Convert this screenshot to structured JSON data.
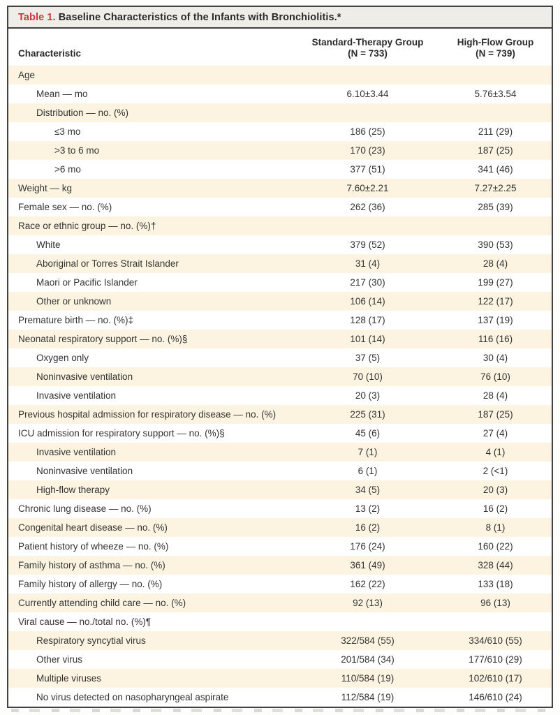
{
  "colors": {
    "accent_red": "#c23b3b",
    "stripe_cream": "#fcf4e1",
    "titlebar_bg": "#efede7",
    "border": "#414143"
  },
  "table": {
    "title_label": "Table 1.",
    "title_text": "Baseline Characteristics of the Infants with Bronchiolitis.*",
    "columns": {
      "characteristic": "Characteristic",
      "std_line1": "Standard-Therapy Group",
      "std_line2": "(N = 733)",
      "hf_line1": "High-Flow Group",
      "hf_line2": "(N = 739)"
    },
    "rows": [
      {
        "label": "Age",
        "indent": 0,
        "std": "",
        "hf": ""
      },
      {
        "label": "Mean — mo",
        "indent": 1,
        "std": "6.10±3.44",
        "hf": "5.76±3.54"
      },
      {
        "label": "Distribution — no. (%)",
        "indent": 1,
        "std": "",
        "hf": ""
      },
      {
        "label": "≤3 mo",
        "indent": 2,
        "std": "186 (25)",
        "hf": "211 (29)"
      },
      {
        "label": ">3 to 6 mo",
        "indent": 2,
        "std": "170 (23)",
        "hf": "187 (25)"
      },
      {
        "label": ">6 mo",
        "indent": 2,
        "std": "377 (51)",
        "hf": "341 (46)"
      },
      {
        "label": "Weight — kg",
        "indent": 0,
        "std": "7.60±2.21",
        "hf": "7.27±2.25"
      },
      {
        "label": "Female sex — no. (%)",
        "indent": 0,
        "std": "262 (36)",
        "hf": "285 (39)"
      },
      {
        "label": "Race or ethnic group — no. (%)†",
        "indent": 0,
        "std": "",
        "hf": ""
      },
      {
        "label": "White",
        "indent": 1,
        "std": "379 (52)",
        "hf": "390 (53)"
      },
      {
        "label": "Aboriginal or Torres Strait Islander",
        "indent": 1,
        "std": "31 (4)",
        "hf": "28 (4)"
      },
      {
        "label": "Maori or Pacific Islander",
        "indent": 1,
        "std": "217 (30)",
        "hf": "199 (27)"
      },
      {
        "label": "Other or unknown",
        "indent": 1,
        "std": "106 (14)",
        "hf": "122 (17)"
      },
      {
        "label": "Premature birth — no. (%)‡",
        "indent": 0,
        "std": "128 (17)",
        "hf": "137 (19)"
      },
      {
        "label": "Neonatal respiratory support — no. (%)§",
        "indent": 0,
        "std": "101 (14)",
        "hf": "116 (16)"
      },
      {
        "label": "Oxygen only",
        "indent": 1,
        "std": "37 (5)",
        "hf": "30 (4)"
      },
      {
        "label": "Noninvasive ventilation",
        "indent": 1,
        "std": "70 (10)",
        "hf": "76 (10)"
      },
      {
        "label": "Invasive ventilation",
        "indent": 1,
        "std": "20 (3)",
        "hf": "28 (4)"
      },
      {
        "label": "Previous hospital admission for respiratory disease — no. (%)",
        "indent": 0,
        "std": "225 (31)",
        "hf": "187 (25)"
      },
      {
        "label": "ICU admission for respiratory support — no. (%)§",
        "indent": 0,
        "std": "45 (6)",
        "hf": "27 (4)"
      },
      {
        "label": "Invasive ventilation",
        "indent": 1,
        "std": "7 (1)",
        "hf": "4 (1)"
      },
      {
        "label": "Noninvasive ventilation",
        "indent": 1,
        "std": "6 (1)",
        "hf": "2 (<1)"
      },
      {
        "label": "High-flow therapy",
        "indent": 1,
        "std": "34 (5)",
        "hf": "20 (3)"
      },
      {
        "label": "Chronic lung disease — no. (%)",
        "indent": 0,
        "std": "13 (2)",
        "hf": "16 (2)"
      },
      {
        "label": "Congenital heart disease — no. (%)",
        "indent": 0,
        "std": "16 (2)",
        "hf": "8 (1)"
      },
      {
        "label": "Patient history of wheeze — no. (%)",
        "indent": 0,
        "std": "176 (24)",
        "hf": "160 (22)"
      },
      {
        "label": "Family history of asthma — no. (%)",
        "indent": 0,
        "std": "361 (49)",
        "hf": "328 (44)"
      },
      {
        "label": "Family history of allergy — no. (%)",
        "indent": 0,
        "std": "162 (22)",
        "hf": "133 (18)"
      },
      {
        "label": "Currently attending child care — no. (%)",
        "indent": 0,
        "std": "92 (13)",
        "hf": "96 (13)"
      },
      {
        "label": "Viral cause — no./total no. (%)¶",
        "indent": 0,
        "std": "",
        "hf": ""
      },
      {
        "label": "Respiratory syncytial virus",
        "indent": 1,
        "std": "322/584 (55)",
        "hf": "334/610 (55)"
      },
      {
        "label": "Other virus",
        "indent": 1,
        "std": "201/584 (34)",
        "hf": "177/610 (29)"
      },
      {
        "label": "Multiple viruses",
        "indent": 1,
        "std": "110/584 (19)",
        "hf": "102/610 (17)"
      },
      {
        "label": "No virus detected on nasopharyngeal aspirate",
        "indent": 1,
        "std": "112/584 (19)",
        "hf": "146/610 (24)"
      }
    ]
  }
}
